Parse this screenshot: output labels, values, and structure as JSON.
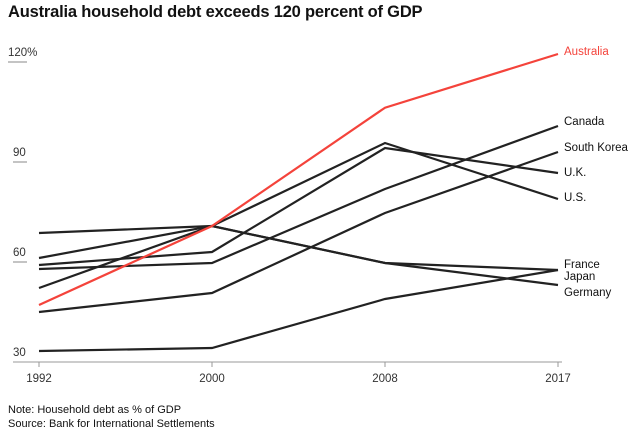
{
  "chart_data": {
    "type": "line",
    "title": "Australia household debt exceeds 120 percent of GDP",
    "x": [
      "1992",
      "2000",
      "2008",
      "2017"
    ],
    "y_ticks": [
      "30",
      "60",
      "90",
      "120%"
    ],
    "ylim": [
      30,
      120
    ],
    "grid": false,
    "legend": "direct labels at right",
    "series": [
      {
        "name": "Australia",
        "values": [
          47.1,
          70.8,
          106.3,
          122.4
        ],
        "color": "#f4433b"
      },
      {
        "name": "Canada",
        "values": [
          57.9,
          59.7,
          81.9,
          100.8
        ],
        "color": "#222222"
      },
      {
        "name": "South Korea",
        "values": [
          45.0,
          50.7,
          74.7,
          93.0
        ],
        "color": "#222222"
      },
      {
        "name": "U.K.",
        "values": [
          59.1,
          63.0,
          94.2,
          86.7
        ],
        "color": "#222222"
      },
      {
        "name": "U.S.",
        "values": [
          61.2,
          70.8,
          95.7,
          78.9
        ],
        "color": "#222222"
      },
      {
        "name": "France",
        "values": [
          33.3,
          34.2,
          48.9,
          57.6
        ],
        "color": "#222222"
      },
      {
        "name": "Japan",
        "values": [
          68.7,
          70.8,
          59.7,
          57.6
        ],
        "color": "#222222"
      },
      {
        "name": "Germany",
        "values": [
          52.2,
          70.8,
          59.7,
          53.1
        ],
        "color": "#222222"
      }
    ]
  },
  "footer": {
    "note": "Note: Household debt as % of GDP",
    "source": "Source: Bank for International Settlements"
  }
}
